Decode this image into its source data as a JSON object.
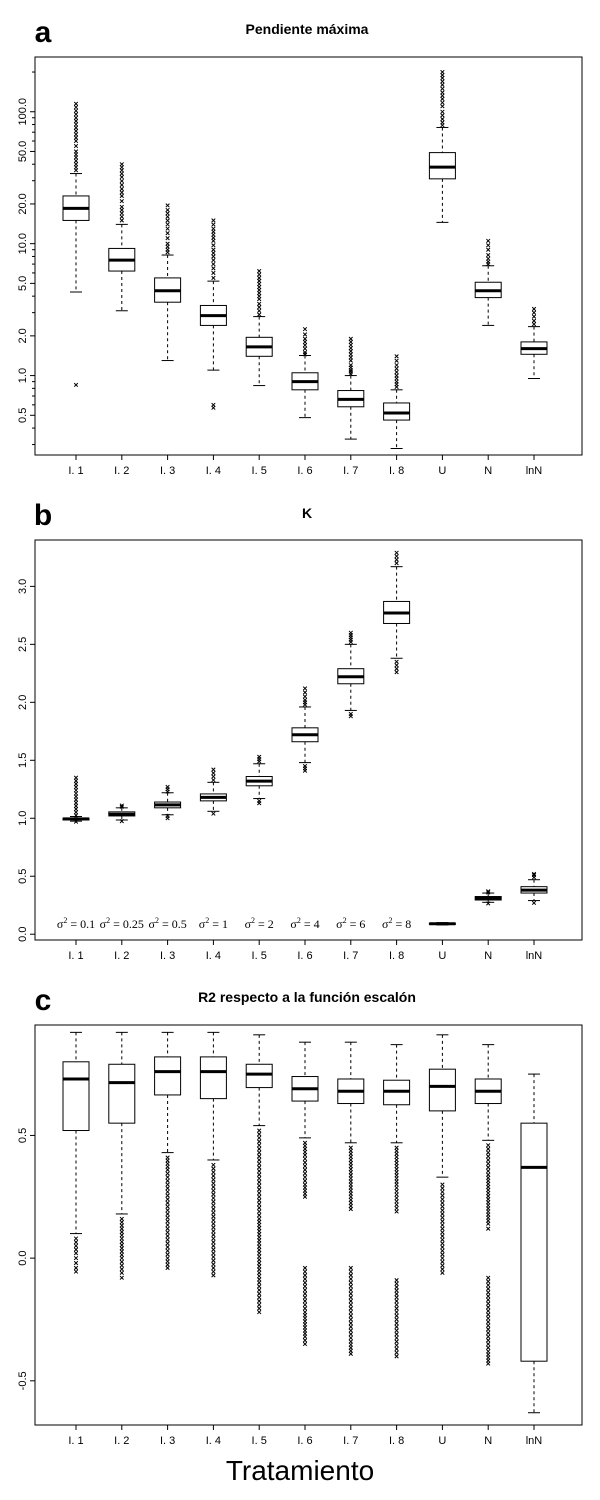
{
  "xlabel": "Tratamiento",
  "chart_data": [
    {
      "type": "boxplot",
      "panel_letter": "a",
      "title": "Pendiente máxima",
      "categories": [
        "I. 1",
        "I. 2",
        "I. 3",
        "I. 4",
        "I. 5",
        "I. 6",
        "I. 7",
        "I. 8",
        "U",
        "N",
        "lnN"
      ],
      "yscale": "log",
      "ylim": [
        0.25,
        260
      ],
      "yticks": [
        0.5,
        1.0,
        2.0,
        5.0,
        10.0,
        20.0,
        50.0,
        100.0
      ],
      "ytick_labels": [
        "0.5",
        "1.0",
        "2.0",
        "5.0",
        "10.0",
        "20.0",
        "50.0",
        "100.0"
      ],
      "boxes": [
        {
          "lower_whisker": 4.3,
          "q1": 15,
          "median": 18.5,
          "q3": 23,
          "upper_whisker": 34,
          "outliers_low": [
            0.85
          ],
          "outliers_high": [
            36,
            40,
            45,
            50,
            55,
            60,
            85,
            90,
            115
          ]
        },
        {
          "lower_whisker": 3.1,
          "q1": 6.2,
          "median": 7.5,
          "q3": 9.2,
          "upper_whisker": 14,
          "outliers_low": [],
          "outliers_high": [
            15,
            16,
            17,
            19,
            21,
            23,
            26,
            32,
            36,
            40
          ]
        },
        {
          "lower_whisker": 1.3,
          "q1": 3.6,
          "median": 4.4,
          "q3": 5.5,
          "upper_whisker": 8.2,
          "outliers_low": [],
          "outliers_high": [
            8.6,
            9,
            10,
            11,
            12,
            13,
            14,
            16,
            18,
            19.5
          ]
        },
        {
          "lower_whisker": 1.1,
          "q1": 2.4,
          "median": 2.85,
          "q3": 3.4,
          "upper_whisker": 5.2,
          "outliers_low": [
            0.57,
            0.6
          ],
          "outliers_high": [
            5.5,
            6,
            6.5,
            7,
            7.5,
            8,
            9,
            10.5,
            13,
            15
          ]
        },
        {
          "lower_whisker": 0.84,
          "q1": 1.4,
          "median": 1.65,
          "q3": 1.95,
          "upper_whisker": 2.8,
          "outliers_low": [],
          "outliers_high": [
            2.9,
            3.1,
            3.3,
            3.5,
            3.8,
            4,
            5.5,
            6.2
          ]
        },
        {
          "lower_whisker": 0.48,
          "q1": 0.78,
          "median": 0.9,
          "q3": 1.05,
          "upper_whisker": 1.42,
          "outliers_low": [],
          "outliers_high": [
            1.45,
            1.5,
            1.6,
            1.7,
            1.8,
            1.9,
            2.05,
            2.25
          ]
        },
        {
          "lower_whisker": 0.33,
          "q1": 0.58,
          "median": 0.66,
          "q3": 0.77,
          "upper_whisker": 1.0,
          "outliers_low": [],
          "outliers_high": [
            1.03,
            1.07,
            1.1,
            1.15,
            1.2,
            1.3,
            1.45,
            1.9
          ]
        },
        {
          "lower_whisker": 0.28,
          "q1": 0.46,
          "median": 0.52,
          "q3": 0.62,
          "upper_whisker": 0.78,
          "outliers_low": [],
          "outliers_high": [
            0.82,
            0.86,
            0.9,
            0.95,
            1.0,
            1.2,
            1.4
          ]
        },
        {
          "lower_whisker": 14.5,
          "q1": 31,
          "median": 38,
          "q3": 49,
          "upper_whisker": 76,
          "outliers_low": [],
          "outliers_high": [
            79,
            83,
            88,
            94,
            100,
            110,
            125,
            140,
            160,
            180,
            200
          ]
        },
        {
          "lower_whisker": 2.4,
          "q1": 3.9,
          "median": 4.4,
          "q3": 5.1,
          "upper_whisker": 6.8,
          "outliers_low": [],
          "outliers_high": [
            7,
            7.3,
            7.7,
            8.2,
            9,
            10.5
          ]
        },
        {
          "lower_whisker": 0.95,
          "q1": 1.45,
          "median": 1.6,
          "q3": 1.8,
          "upper_whisker": 2.35,
          "outliers_low": [],
          "outliers_high": [
            2.45,
            2.6,
            2.8,
            3.0,
            3.2
          ]
        }
      ]
    },
    {
      "type": "boxplot",
      "panel_letter": "b",
      "title": "K",
      "categories": [
        "I. 1",
        "I. 2",
        "I. 3",
        "I. 4",
        "I. 5",
        "I. 6",
        "I. 7",
        "I. 8",
        "U",
        "N",
        "lnN"
      ],
      "yscale": "linear",
      "ylim": [
        -0.05,
        3.4
      ],
      "yticks": [
        0.0,
        0.5,
        1.0,
        1.5,
        2.0,
        2.5,
        3.0
      ],
      "ytick_labels": [
        "0.0",
        "0.5",
        "1.0",
        "1.5",
        "2.0",
        "2.5",
        "3.0"
      ],
      "annotations": [
        {
          "category": "I. 1",
          "sigma": "0.1"
        },
        {
          "category": "I. 2",
          "sigma": "0.25"
        },
        {
          "category": "I. 3",
          "sigma": "0.5"
        },
        {
          "category": "I. 4",
          "sigma": "1"
        },
        {
          "category": "I. 5",
          "sigma": "2"
        },
        {
          "category": "I. 6",
          "sigma": "4"
        },
        {
          "category": "I. 7",
          "sigma": "6"
        },
        {
          "category": "I. 8",
          "sigma": "8"
        }
      ],
      "boxes": [
        {
          "lower_whisker": 0.975,
          "q1": 0.985,
          "median": 0.995,
          "q3": 1.0,
          "upper_whisker": 1.015,
          "outliers_low": [
            0.97
          ],
          "outliers_high": [
            1.025,
            1.35
          ]
        },
        {
          "lower_whisker": 0.985,
          "q1": 1.02,
          "median": 1.035,
          "q3": 1.055,
          "upper_whisker": 1.09,
          "outliers_low": [
            0.975
          ],
          "outliers_high": [
            1.1,
            1.11
          ]
        },
        {
          "lower_whisker": 1.03,
          "q1": 1.09,
          "median": 1.115,
          "q3": 1.14,
          "upper_whisker": 1.22,
          "outliers_low": [
            1.0,
            1.02
          ],
          "outliers_high": [
            1.23,
            1.25,
            1.27
          ]
        },
        {
          "lower_whisker": 1.06,
          "q1": 1.15,
          "median": 1.18,
          "q3": 1.21,
          "upper_whisker": 1.31,
          "outliers_low": [
            1.04
          ],
          "outliers_high": [
            1.33,
            1.36,
            1.39,
            1.42
          ]
        },
        {
          "lower_whisker": 1.17,
          "q1": 1.28,
          "median": 1.32,
          "q3": 1.36,
          "upper_whisker": 1.47,
          "outliers_low": [
            1.13,
            1.15
          ],
          "outliers_high": [
            1.49,
            1.51,
            1.53
          ]
        },
        {
          "lower_whisker": 1.48,
          "q1": 1.66,
          "median": 1.72,
          "q3": 1.78,
          "upper_whisker": 1.96,
          "outliers_low": [
            1.41,
            1.43,
            1.45
          ],
          "outliers_high": [
            1.98,
            2.0,
            2.02,
            2.05,
            2.12
          ]
        },
        {
          "lower_whisker": 1.93,
          "q1": 2.16,
          "median": 2.22,
          "q3": 2.29,
          "upper_whisker": 2.5,
          "outliers_low": [
            1.88,
            1.9
          ],
          "outliers_high": [
            2.52,
            2.54,
            2.56,
            2.58,
            2.6
          ]
        },
        {
          "lower_whisker": 2.38,
          "q1": 2.68,
          "median": 2.77,
          "q3": 2.87,
          "upper_whisker": 3.17,
          "outliers_low": [
            2.26,
            2.29,
            2.32,
            2.35
          ],
          "outliers_high": [
            3.2,
            3.23,
            3.26,
            3.29
          ]
        },
        {
          "lower_whisker": 0.08,
          "q1": 0.085,
          "median": 0.09,
          "q3": 0.095,
          "upper_whisker": 0.1,
          "outliers_low": [],
          "outliers_high": []
        },
        {
          "lower_whisker": 0.275,
          "q1": 0.295,
          "median": 0.31,
          "q3": 0.325,
          "upper_whisker": 0.355,
          "outliers_low": [
            0.265
          ],
          "outliers_high": [
            0.36,
            0.37
          ]
        },
        {
          "lower_whisker": 0.29,
          "q1": 0.355,
          "median": 0.38,
          "q3": 0.41,
          "upper_whisker": 0.47,
          "outliers_low": [
            0.27
          ],
          "outliers_high": [
            0.49,
            0.51,
            0.52
          ]
        }
      ]
    },
    {
      "type": "boxplot",
      "panel_letter": "c",
      "title": "R2 respecto a la función escalón",
      "categories": [
        "I. 1",
        "I. 2",
        "I. 3",
        "I. 4",
        "I. 5",
        "I. 6",
        "I. 7",
        "I. 8",
        "U",
        "N",
        "lnN"
      ],
      "yscale": "linear",
      "ylim": [
        -0.68,
        0.95
      ],
      "yticks": [
        -0.5,
        0.0,
        0.5
      ],
      "ytick_labels": [
        "-0.5",
        "0.0",
        "0.5"
      ],
      "boxes": [
        {
          "lower_whisker": 0.1,
          "q1": 0.52,
          "median": 0.73,
          "q3": 0.8,
          "upper_whisker": 0.92,
          "outliers_low": [
            0.08,
            0.05,
            0.02,
            0.0,
            -0.02,
            -0.04,
            -0.055
          ],
          "outliers_high": []
        },
        {
          "lower_whisker": 0.18,
          "q1": 0.55,
          "median": 0.715,
          "q3": 0.79,
          "upper_whisker": 0.92,
          "outliers_low": [
            0.16,
            0.12,
            0.08,
            0.04,
            0.0,
            -0.03,
            -0.06,
            -0.08
          ],
          "outliers_high": []
        },
        {
          "lower_whisker": 0.43,
          "q1": 0.665,
          "median": 0.76,
          "q3": 0.82,
          "upper_whisker": 0.92,
          "outliers_low": [
            0.41,
            0.36,
            0.3,
            0.24,
            0.18,
            0.12,
            0.06,
            0.0,
            -0.04
          ],
          "outliers_high": []
        },
        {
          "lower_whisker": 0.4,
          "q1": 0.65,
          "median": 0.76,
          "q3": 0.82,
          "upper_whisker": 0.92,
          "outliers_low": [
            0.38,
            0.32,
            0.26,
            0.2,
            0.14,
            0.08,
            0.02,
            -0.04,
            -0.07
          ],
          "outliers_high": []
        },
        {
          "lower_whisker": 0.54,
          "q1": 0.695,
          "median": 0.75,
          "q3": 0.79,
          "upper_whisker": 0.91,
          "outliers_low": [
            0.52,
            0.46,
            0.4,
            0.34,
            0.28,
            0.22,
            0.16,
            0.06,
            -0.02,
            -0.1,
            -0.16,
            -0.22
          ],
          "outliers_high": []
        },
        {
          "lower_whisker": 0.49,
          "q1": 0.64,
          "median": 0.69,
          "q3": 0.74,
          "upper_whisker": 0.88,
          "outliers_low": [
            0.47,
            0.42,
            0.36,
            0.3,
            0.25,
            -0.04,
            -0.1,
            -0.16,
            -0.22,
            -0.27,
            -0.32,
            -0.35
          ],
          "outliers_high": []
        },
        {
          "lower_whisker": 0.47,
          "q1": 0.63,
          "median": 0.68,
          "q3": 0.73,
          "upper_whisker": 0.88,
          "outliers_low": [
            0.45,
            0.4,
            0.35,
            0.3,
            0.2,
            -0.04,
            -0.1,
            -0.16,
            -0.22,
            -0.28,
            -0.34,
            -0.39
          ],
          "outliers_high": []
        },
        {
          "lower_whisker": 0.47,
          "q1": 0.625,
          "median": 0.68,
          "q3": 0.725,
          "upper_whisker": 0.87,
          "outliers_low": [
            0.45,
            0.4,
            0.35,
            0.3,
            0.19,
            -0.09,
            -0.16,
            -0.22,
            -0.28,
            -0.34,
            -0.4
          ],
          "outliers_high": []
        },
        {
          "lower_whisker": 0.33,
          "q1": 0.6,
          "median": 0.7,
          "q3": 0.77,
          "upper_whisker": 0.91,
          "outliers_low": [
            0.3,
            0.24,
            0.18,
            0.12,
            0.06,
            0.0,
            -0.06
          ],
          "outliers_high": []
        },
        {
          "lower_whisker": 0.48,
          "q1": 0.63,
          "median": 0.68,
          "q3": 0.73,
          "upper_whisker": 0.87,
          "outliers_low": [
            0.46,
            0.4,
            0.34,
            0.29,
            0.14,
            0.12,
            -0.08,
            -0.14,
            -0.2,
            -0.26,
            -0.32,
            -0.38,
            -0.43
          ],
          "outliers_high": []
        },
        {
          "lower_whisker": -0.63,
          "q1": -0.42,
          "median": 0.37,
          "q3": 0.55,
          "upper_whisker": 0.75,
          "outliers_low": [],
          "outliers_high": []
        }
      ]
    }
  ]
}
